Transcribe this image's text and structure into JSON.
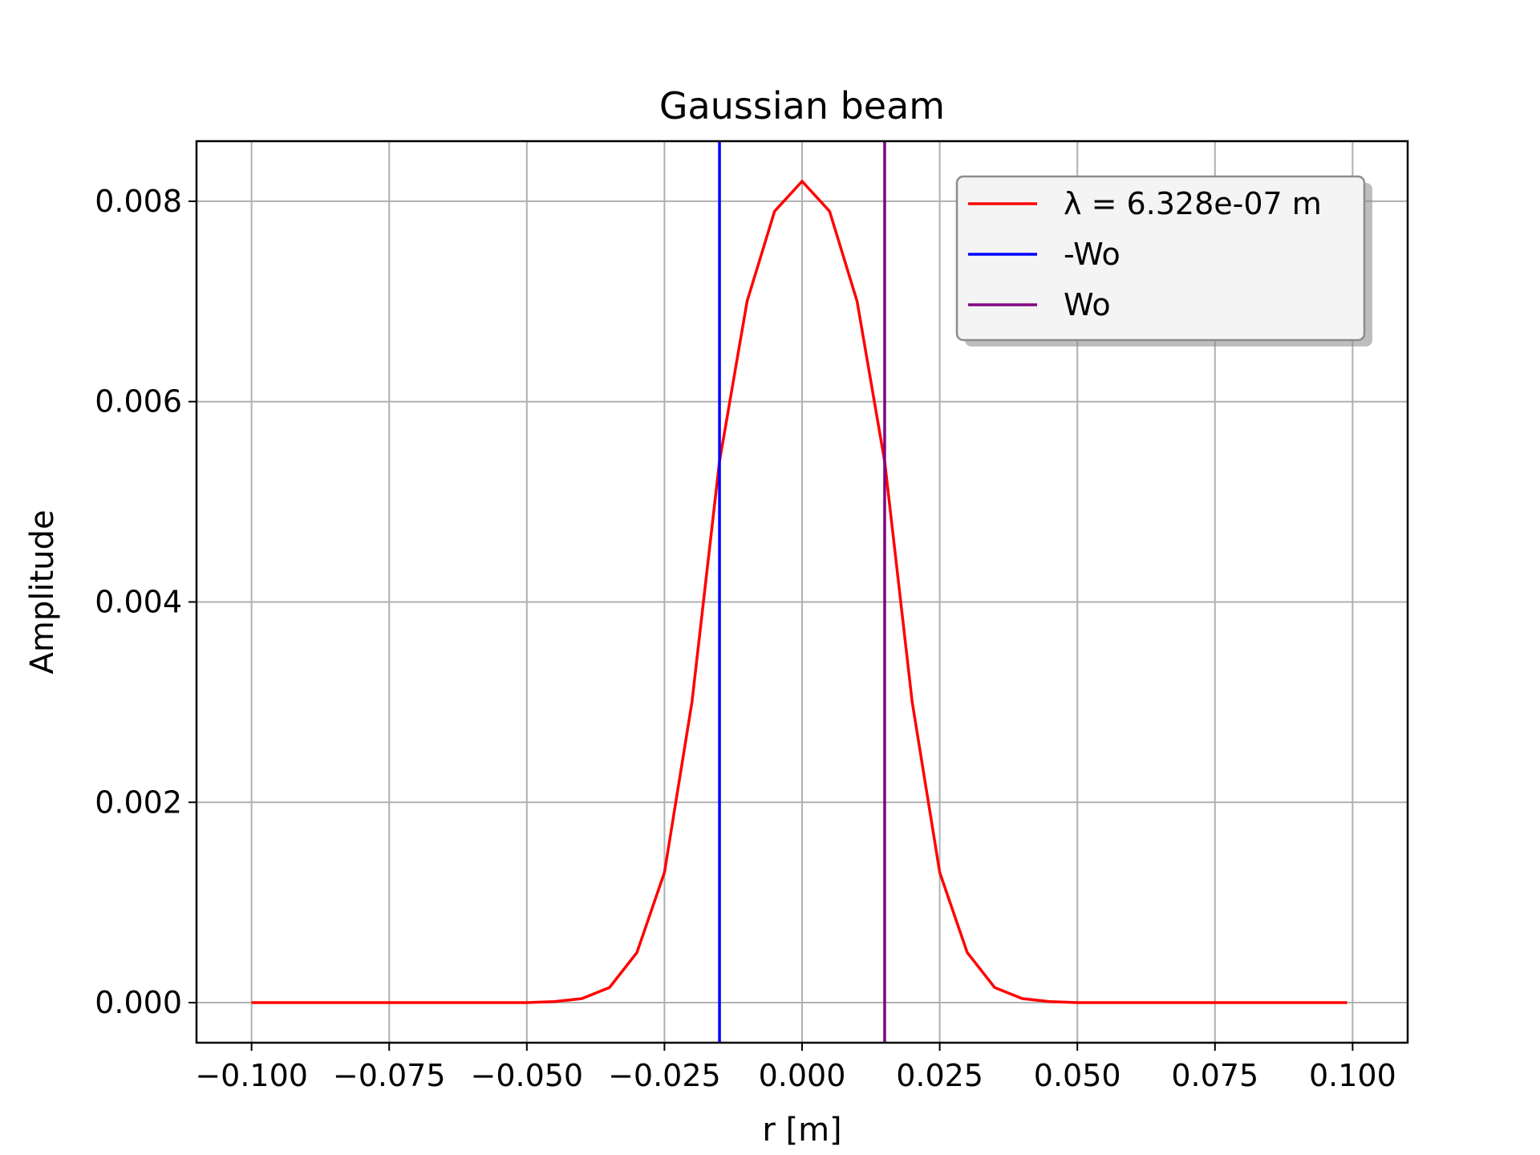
{
  "chart_data": {
    "type": "line",
    "title": "Gaussian beam",
    "xlabel": "r [m]",
    "ylabel": "Amplitude",
    "xlim": [
      -0.11,
      0.11
    ],
    "ylim": [
      -0.0004,
      0.0086
    ],
    "grid": true,
    "legend_position": "top-right",
    "xticks": [
      -0.1,
      -0.075,
      -0.05,
      -0.025,
      0.0,
      0.025,
      0.05,
      0.075,
      0.1
    ],
    "xtick_labels": [
      "−0.100",
      "−0.075",
      "−0.050",
      "−0.025",
      "0.000",
      "0.025",
      "0.050",
      "0.075",
      "0.100"
    ],
    "yticks": [
      0.0,
      0.002,
      0.004,
      0.006,
      0.008
    ],
    "ytick_labels": [
      "0.000",
      "0.002",
      "0.004",
      "0.006",
      "0.008"
    ],
    "series": [
      {
        "name": "λ = 6.328e-07 m",
        "kind": "line",
        "color": "#ff0000",
        "x": [
          -0.1,
          -0.09,
          -0.08,
          -0.07,
          -0.06,
          -0.05,
          -0.045,
          -0.04,
          -0.035,
          -0.03,
          -0.025,
          -0.02,
          -0.015,
          -0.01,
          -0.005,
          0.0,
          0.005,
          0.01,
          0.015,
          0.02,
          0.025,
          0.03,
          0.035,
          0.04,
          0.045,
          0.05,
          0.06,
          0.07,
          0.08,
          0.09,
          0.099
        ],
        "y": [
          0.0,
          0.0,
          0.0,
          0.0,
          0.0,
          0.0,
          1e-05,
          4e-05,
          0.00015,
          0.0005,
          0.0013,
          0.003,
          0.0054,
          0.007,
          0.0079,
          0.0082,
          0.0079,
          0.007,
          0.0054,
          0.003,
          0.0013,
          0.0005,
          0.00015,
          4e-05,
          1e-05,
          0.0,
          0.0,
          0.0,
          0.0,
          0.0,
          0.0
        ]
      },
      {
        "name": "-Wo",
        "kind": "vline",
        "color": "#0000ff",
        "x": -0.015
      },
      {
        "name": "Wo",
        "kind": "vline",
        "color": "#800080",
        "x": 0.015
      }
    ]
  }
}
